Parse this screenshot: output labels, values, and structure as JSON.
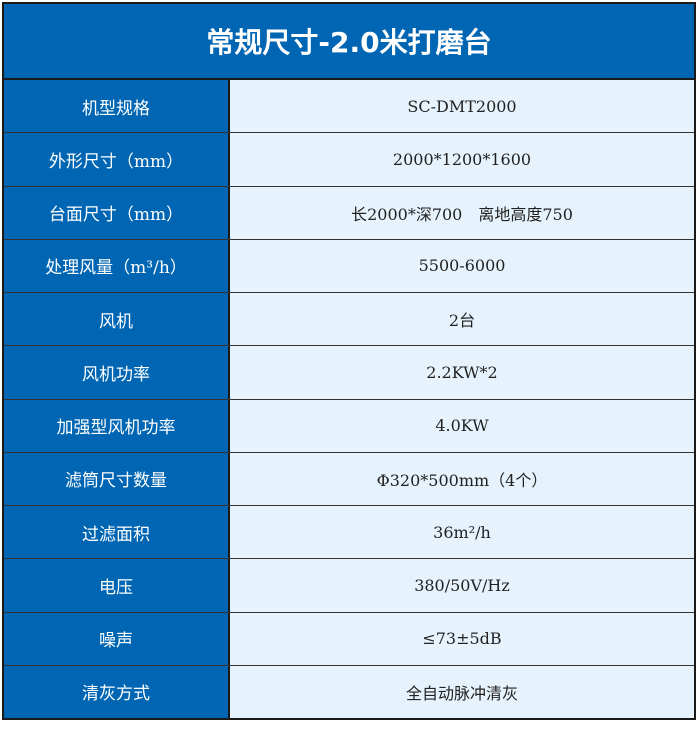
{
  "title": "常规尺寸-2.0米打磨台",
  "rows": [
    {
      "label": "机型规格",
      "value": "SC-DMT2000"
    },
    {
      "label": "外形尺寸（mm）",
      "value": "2000*1200*1600"
    },
    {
      "label": "台面尺寸（mm）",
      "value": "长2000*深700　离地高度750"
    },
    {
      "label": "处理风量（m³/h）",
      "value": "5500-6000"
    },
    {
      "label": "风机",
      "value": "2台"
    },
    {
      "label": "风机功率",
      "value": "2.2KW*2"
    },
    {
      "label": "加强型风机功率",
      "value": "4.0KW"
    },
    {
      "label": "滤筒尺寸数量",
      "value": "Φ320*500mm（4个）"
    },
    {
      "label": "过滤面积",
      "value": "36m²/h"
    },
    {
      "label": "电压",
      "value": "380/50V/Hz"
    },
    {
      "label": "噪声",
      "value": "≤73±5dB"
    },
    {
      "label": "清灰方式",
      "value": "全自动脉冲清灰"
    }
  ],
  "colors": {
    "header_bg": "#0066b3",
    "value_bg": "#e6f3fc"
  }
}
